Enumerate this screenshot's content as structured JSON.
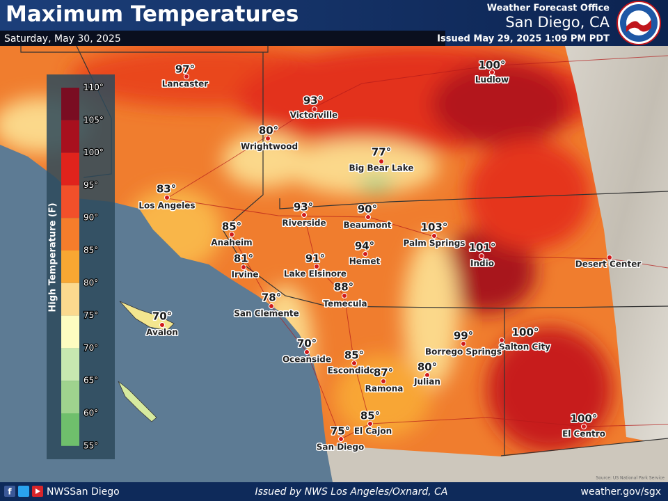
{
  "header": {
    "title": "Maximum Temperatures",
    "date": "Saturday, May 30, 2025",
    "office": "Weather Forecast Office",
    "location": "San Diego, CA",
    "issued": "Issued May 29, 2025 1:09 PM PDT"
  },
  "legend": {
    "title": "High Temperature (F)",
    "ticks": [
      "110°",
      "105°",
      "100°",
      "95°",
      "90°",
      "85°",
      "80°",
      "75°",
      "70°",
      "65°",
      "60°",
      "55°"
    ],
    "colors": [
      "#7a0d22",
      "#a8101e",
      "#e0231c",
      "#f2502a",
      "#f57d2b",
      "#f8a732",
      "#fbd98e",
      "#fdfcc0",
      "#c7e8b0",
      "#9fd38e",
      "#6fbf6c"
    ]
  },
  "cities": [
    {
      "name": "Lancaster",
      "temp": "97°"
    },
    {
      "name": "Ludlow",
      "temp": "100°"
    },
    {
      "name": "Victorville",
      "temp": "93°"
    },
    {
      "name": "Wrightwood",
      "temp": "80°"
    },
    {
      "name": "Big Bear Lake",
      "temp": "77°"
    },
    {
      "name": "Los Angeles",
      "temp": "83°"
    },
    {
      "name": "Riverside",
      "temp": "93°"
    },
    {
      "name": "Beaumont",
      "temp": "90°"
    },
    {
      "name": "Palm Springs",
      "temp": "103°"
    },
    {
      "name": "Anaheim",
      "temp": "85°"
    },
    {
      "name": "Hemet",
      "temp": "94°"
    },
    {
      "name": "Indio",
      "temp": "101°"
    },
    {
      "name": "Desert Center"
    },
    {
      "name": "Irvine",
      "temp": "81°"
    },
    {
      "name": "Lake Elsinore",
      "temp": "91°"
    },
    {
      "name": "Temecula",
      "temp": "88°"
    },
    {
      "name": "San Clemente",
      "temp": "78°"
    },
    {
      "name": "Avalon",
      "temp": "70°"
    },
    {
      "name": "Salton City",
      "temp": "100°"
    },
    {
      "name": "Borrego Springs",
      "temp": "99°"
    },
    {
      "name": "Oceanside",
      "temp": "70°"
    },
    {
      "name": "Escondido",
      "temp": "85°"
    },
    {
      "name": "Julian",
      "temp": "80°"
    },
    {
      "name": "Ramona",
      "temp": "87°"
    },
    {
      "name": "El Centro",
      "temp": "100°"
    },
    {
      "name": "El Cajon",
      "temp": "85°"
    },
    {
      "name": "San Diego",
      "temp": "75°"
    }
  ],
  "source": "Source: US National Park Service",
  "footer": {
    "social": "NWSSan Diego",
    "issued_by": "Issued by NWS Los Angeles/Oxnard, CA",
    "website": "weather.gov/sgx"
  }
}
